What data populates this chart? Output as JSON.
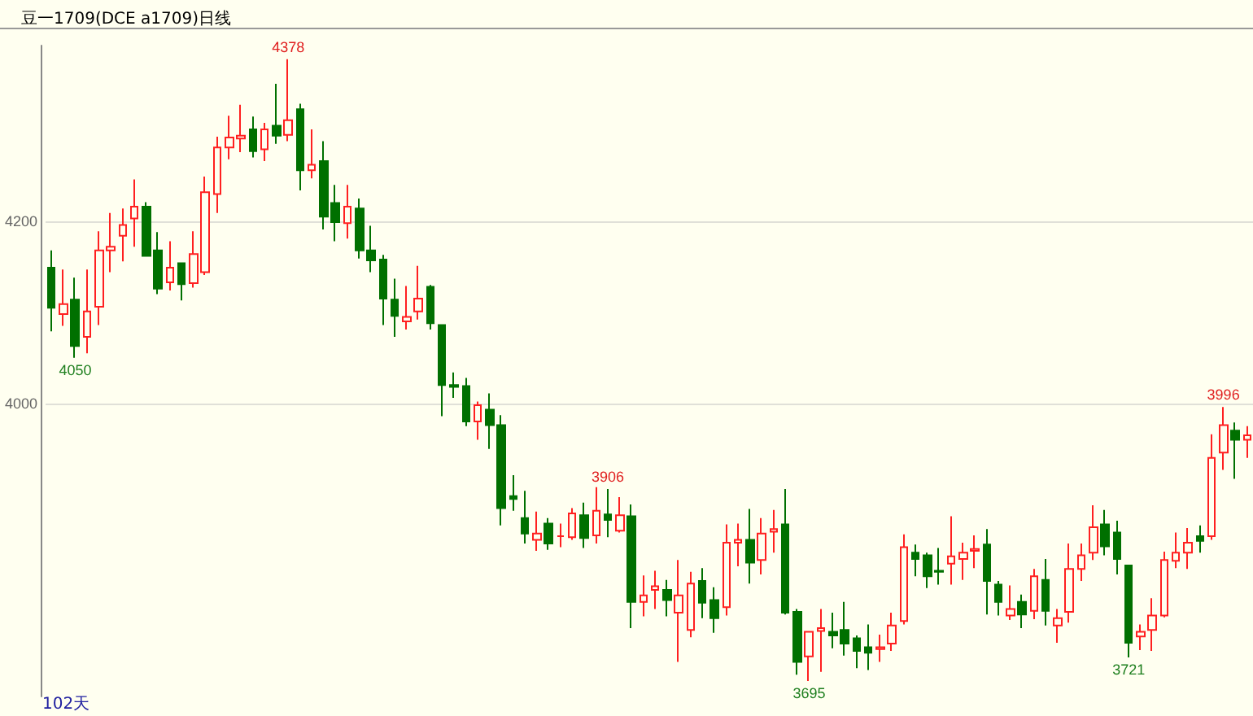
{
  "chart_data": {
    "type": "candlestick",
    "title": "豆一1709(DCE a1709)日线",
    "categories": [
      null,
      null,
      null,
      null,
      null,
      null,
      null,
      null,
      null,
      null,
      null,
      null,
      null,
      null,
      null,
      null,
      null,
      null,
      null,
      null,
      null,
      null,
      null,
      null,
      null,
      null,
      null,
      null,
      null,
      null,
      null,
      null,
      null,
      null,
      null,
      null,
      null,
      null,
      null,
      null,
      null,
      null,
      null,
      null,
      null,
      null,
      null,
      null,
      null,
      null,
      null,
      null,
      null,
      null,
      null,
      null,
      null,
      null,
      null,
      null,
      null,
      null,
      null,
      null,
      null,
      null,
      null,
      null,
      null,
      null,
      null,
      null,
      null,
      null,
      null,
      null,
      null,
      null,
      null,
      null,
      null,
      null,
      null,
      null,
      null,
      null,
      null,
      null,
      null,
      null,
      null,
      null,
      null,
      null,
      null,
      null,
      null,
      null,
      null,
      null,
      null,
      null
    ],
    "ohlc": [
      [
        4149,
        4168,
        4079,
        4105
      ],
      [
        4098,
        4147,
        4085,
        4109
      ],
      [
        4114,
        4138,
        4050,
        4063
      ],
      [
        4073,
        4147,
        4055,
        4101
      ],
      [
        4106,
        4189,
        4086,
        4168
      ],
      [
        4168,
        4209,
        4144,
        4172
      ],
      [
        4184,
        4214,
        4156,
        4196
      ],
      [
        4203,
        4246,
        4172,
        4216
      ],
      [
        4216,
        4221,
        4162,
        4162
      ],
      [
        4168,
        4188,
        4120,
        4126
      ],
      [
        4133,
        4178,
        4124,
        4149
      ],
      [
        4154,
        4154,
        4113,
        4131
      ],
      [
        4132,
        4189,
        4127,
        4164
      ],
      [
        4144,
        4249,
        4141,
        4232
      ],
      [
        4230,
        4293,
        4209,
        4281
      ],
      [
        4281,
        4316,
        4268,
        4292
      ],
      [
        4291,
        4328,
        4276,
        4294
      ],
      [
        4301,
        4315,
        4270,
        4277
      ],
      [
        4279,
        4308,
        4266,
        4301
      ],
      [
        4305,
        4351,
        4285,
        4294
      ],
      [
        4295,
        4378,
        4288,
        4311
      ],
      [
        4323,
        4329,
        4234,
        4256
      ],
      [
        4256,
        4301,
        4247,
        4262
      ],
      [
        4266,
        4288,
        4191,
        4205
      ],
      [
        4220,
        4240,
        4178,
        4199
      ],
      [
        4198,
        4240,
        4181,
        4216
      ],
      [
        4214,
        4225,
        4159,
        4168
      ],
      [
        4168,
        4195,
        4144,
        4157
      ],
      [
        4158,
        4163,
        4086,
        4115
      ],
      [
        4114,
        4137,
        4073,
        4096
      ],
      [
        4090,
        4129,
        4081,
        4095
      ],
      [
        4101,
        4151,
        4092,
        4115
      ],
      [
        4128,
        4130,
        4081,
        4088
      ],
      [
        4086,
        4086,
        3986,
        4020
      ],
      [
        4020,
        4034,
        4006,
        4018
      ],
      [
        4019,
        4028,
        3975,
        3980
      ],
      [
        3980,
        4002,
        3960,
        3998
      ],
      [
        3993,
        4011,
        3950,
        3976
      ],
      [
        3976,
        3987,
        3866,
        3885
      ],
      [
        3898,
        3921,
        3882,
        3895
      ],
      [
        3874,
        3904,
        3846,
        3857
      ],
      [
        3850,
        3881,
        3838,
        3857
      ],
      [
        3868,
        3874,
        3839,
        3846
      ],
      [
        3854,
        3868,
        3842,
        3854
      ],
      [
        3853,
        3885,
        3850,
        3879
      ],
      [
        3877,
        3891,
        3841,
        3852
      ],
      [
        3855,
        3908,
        3846,
        3882
      ],
      [
        3878,
        3906,
        3853,
        3872
      ],
      [
        3860,
        3897,
        3858,
        3877
      ],
      [
        3876,
        3889,
        3753,
        3782
      ],
      [
        3782,
        3811,
        3766,
        3789
      ],
      [
        3795,
        3816,
        3774,
        3799
      ],
      [
        3795,
        3806,
        3766,
        3784
      ],
      [
        3770,
        3828,
        3716,
        3789
      ],
      [
        3751,
        3815,
        3743,
        3802
      ],
      [
        3805,
        3819,
        3764,
        3781
      ],
      [
        3784,
        3798,
        3748,
        3764
      ],
      [
        3776,
        3867,
        3767,
        3847
      ],
      [
        3847,
        3868,
        3821,
        3850
      ],
      [
        3850,
        3884,
        3802,
        3825
      ],
      [
        3828,
        3874,
        3812,
        3857
      ],
      [
        3859,
        3883,
        3836,
        3862
      ],
      [
        3867,
        3906,
        3768,
        3770
      ],
      [
        3771,
        3774,
        3702,
        3716
      ],
      [
        3722,
        3749,
        3695,
        3749
      ],
      [
        3750,
        3774,
        3705,
        3753
      ],
      [
        3749,
        3770,
        3731,
        3745
      ],
      [
        3751,
        3782,
        3723,
        3736
      ],
      [
        3742,
        3745,
        3709,
        3728
      ],
      [
        3732,
        3757,
        3707,
        3726
      ],
      [
        3730,
        3746,
        3716,
        3732
      ],
      [
        3736,
        3770,
        3728,
        3756
      ],
      [
        3761,
        3856,
        3757,
        3842
      ],
      [
        3836,
        3845,
        3810,
        3829
      ],
      [
        3833,
        3836,
        3797,
        3810
      ],
      [
        3816,
        3841,
        3801,
        3815
      ],
      [
        3824,
        3876,
        3801,
        3832
      ],
      [
        3829,
        3847,
        3806,
        3836
      ],
      [
        3838,
        3855,
        3819,
        3840
      ],
      [
        3845,
        3862,
        3768,
        3805
      ],
      [
        3801,
        3805,
        3767,
        3782
      ],
      [
        3767,
        3800,
        3762,
        3774
      ],
      [
        3782,
        3790,
        3753,
        3768
      ],
      [
        3772,
        3818,
        3763,
        3810
      ],
      [
        3806,
        3829,
        3756,
        3772
      ],
      [
        3756,
        3774,
        3737,
        3764
      ],
      [
        3771,
        3846,
        3759,
        3818
      ],
      [
        3818,
        3846,
        3805,
        3833
      ],
      [
        3836,
        3888,
        3828,
        3864
      ],
      [
        3867,
        3883,
        3833,
        3843
      ],
      [
        3858,
        3871,
        3812,
        3829
      ],
      [
        3822,
        3822,
        3721,
        3737
      ],
      [
        3744,
        3757,
        3729,
        3749
      ],
      [
        3751,
        3786,
        3728,
        3767
      ],
      [
        3767,
        3837,
        3765,
        3828
      ],
      [
        3827,
        3858,
        3819,
        3836
      ],
      [
        3836,
        3863,
        3818,
        3847
      ],
      [
        3854,
        3866,
        3836,
        3849
      ],
      [
        3854,
        3966,
        3850,
        3940
      ],
      [
        3946,
        3996,
        3927,
        3976
      ],
      [
        3970,
        3979,
        3917,
        3960
      ],
      [
        3960,
        3975,
        3940,
        3965
      ]
    ],
    "ylim": [
      3678,
      4393
    ],
    "yticks": [
      4000,
      4200
    ],
    "grid": "y",
    "tick_labels": "y",
    "annotations": [
      {
        "text": "4378",
        "y": 4378
      },
      {
        "text": "4050",
        "y": 4050
      },
      {
        "text": "3906",
        "y": 3906
      },
      {
        "text": "3695",
        "y": 3695
      },
      {
        "text": "3721",
        "y": 3721
      },
      {
        "text": "3996",
        "y": 3996
      },
      "102天"
    ]
  }
}
